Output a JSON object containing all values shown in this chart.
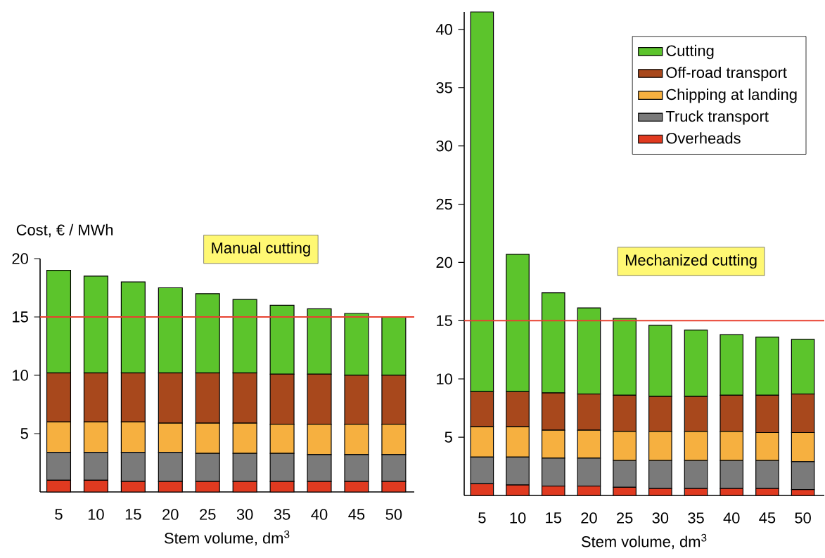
{
  "chart_data": [
    {
      "type": "bar",
      "stacked": true,
      "ylabel": "Cost, € / MWh",
      "xlabel": "Stem volume, dm$^{3}$",
      "annotations": [
        "Manual cutting"
      ],
      "categories": [
        "5",
        "10",
        "15",
        "20",
        "25",
        "30",
        "35",
        "40",
        "45",
        "50"
      ],
      "ylim": [
        0,
        20
      ],
      "yticks": [
        5,
        10,
        15,
        20
      ],
      "legend": false,
      "grid": false,
      "ref_lines": [
        {
          "axis": "y",
          "value": 15,
          "color": "#e84030"
        }
      ],
      "series": [
        {
          "color": "#e03a20",
          "values": [
            1.0,
            1.0,
            0.9,
            0.9,
            0.9,
            0.9,
            0.9,
            0.9,
            0.9,
            0.9
          ]
        },
        {
          "color": "#7a7a7a",
          "values": [
            2.4,
            2.4,
            2.5,
            2.5,
            2.4,
            2.4,
            2.4,
            2.3,
            2.3,
            2.3
          ]
        },
        {
          "color": "#f6b040",
          "values": [
            2.6,
            2.6,
            2.6,
            2.5,
            2.6,
            2.6,
            2.5,
            2.6,
            2.6,
            2.6
          ]
        },
        {
          "color": "#a8481c",
          "values": [
            4.2,
            4.2,
            4.2,
            4.3,
            4.3,
            4.3,
            4.3,
            4.3,
            4.2,
            4.2
          ]
        },
        {
          "color": "#5cc42c",
          "values": [
            8.8,
            8.3,
            7.8,
            7.3,
            6.8,
            6.3,
            5.9,
            5.6,
            5.3,
            5.0
          ]
        }
      ]
    },
    {
      "type": "bar",
      "stacked": true,
      "xlabel": "Stem volume, dm$^{3}$",
      "annotations": [
        "Mechanized cutting"
      ],
      "categories": [
        "5",
        "10",
        "15",
        "20",
        "25",
        "30",
        "35",
        "40",
        "45",
        "50"
      ],
      "ylim": [
        0,
        41.5
      ],
      "yticks": [
        5,
        10,
        15,
        20,
        25,
        30,
        35,
        40
      ],
      "legend": "top right",
      "grid": false,
      "ref_lines": [
        {
          "axis": "y",
          "value": 15,
          "color": "#e84030"
        }
      ],
      "series": [
        {
          "name": "Overheads",
          "color": "#e03a20",
          "values": [
            1.0,
            0.9,
            0.8,
            0.8,
            0.7,
            0.6,
            0.6,
            0.6,
            0.6,
            0.5
          ]
        },
        {
          "name": "Truck transport",
          "color": "#7a7a7a",
          "values": [
            2.3,
            2.4,
            2.4,
            2.4,
            2.3,
            2.4,
            2.4,
            2.4,
            2.4,
            2.4
          ]
        },
        {
          "name": "Chipping at landing",
          "color": "#f6b040",
          "values": [
            2.6,
            2.6,
            2.4,
            2.4,
            2.5,
            2.5,
            2.5,
            2.5,
            2.4,
            2.5
          ]
        },
        {
          "name": "Off-road transport",
          "color": "#a8481c",
          "values": [
            3.0,
            3.0,
            3.2,
            3.1,
            3.1,
            3.0,
            3.0,
            3.1,
            3.2,
            3.3
          ]
        },
        {
          "name": "Cutting",
          "color": "#5cc42c",
          "values": [
            32.6,
            11.8,
            8.6,
            7.4,
            6.6,
            6.1,
            5.7,
            5.2,
            5.0,
            4.7
          ]
        }
      ]
    }
  ]
}
